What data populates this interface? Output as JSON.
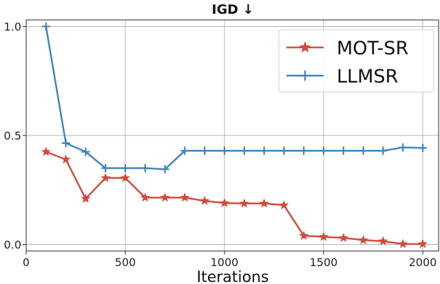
{
  "chart_data": {
    "type": "line",
    "title": "IGD ↓",
    "xlabel": "Iterations",
    "ylabel": "",
    "xlim": [
      0,
      2080
    ],
    "ylim": [
      -0.03,
      1.03
    ],
    "xticks": [
      0,
      500,
      1000,
      1500,
      2000
    ],
    "yticks": [
      0.0,
      0.5,
      1.0
    ],
    "xtick_labels": [
      "0",
      "500",
      "1000",
      "1500",
      "2000"
    ],
    "ytick_labels": [
      "0.0",
      "0.5",
      "1.0"
    ],
    "grid": true,
    "legend_position": "top-right",
    "series": [
      {
        "name": "MOT-SR",
        "color": "#d24b3c",
        "marker": "star",
        "x": [
          100,
          200,
          300,
          400,
          500,
          600,
          700,
          800,
          900,
          1000,
          1100,
          1200,
          1300,
          1400,
          1500,
          1600,
          1700,
          1800,
          1900,
          2000
        ],
        "y": [
          0.425,
          0.39,
          0.21,
          0.305,
          0.305,
          0.215,
          0.215,
          0.215,
          0.2,
          0.19,
          0.188,
          0.188,
          0.18,
          0.04,
          0.035,
          0.03,
          0.02,
          0.015,
          0.002,
          0.002
        ]
      },
      {
        "name": "LLMSR",
        "color": "#3c85b9",
        "marker": "plus",
        "x": [
          100,
          200,
          300,
          400,
          500,
          600,
          700,
          800,
          900,
          1000,
          1100,
          1200,
          1300,
          1400,
          1500,
          1600,
          1700,
          1800,
          1900,
          2000
        ],
        "y": [
          1.0,
          0.465,
          0.425,
          0.35,
          0.35,
          0.35,
          0.345,
          0.43,
          0.43,
          0.43,
          0.43,
          0.43,
          0.43,
          0.43,
          0.43,
          0.43,
          0.43,
          0.43,
          0.445,
          0.443
        ]
      }
    ]
  }
}
